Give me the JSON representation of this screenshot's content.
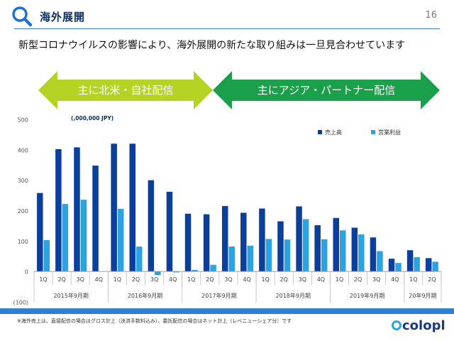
{
  "header": {
    "title": "海外展開",
    "page_number": "16",
    "icon": "search-icon"
  },
  "subtitle": "新型コロナウイルスの影響により、海外展開の新たな取り組みは一旦見合わせています",
  "arrows": {
    "left": {
      "label": "主に北米・自社配信",
      "color": "#b5d324"
    },
    "right": {
      "label": "主にアジア・パートナー配信",
      "color": "#1aa04a"
    }
  },
  "footer": {
    "note": "※海外売上は、直接配信の場合はグロス計上（決済手数料込み）、委託配信の場合はネット計上（レベニューシェア分）です",
    "logo": "colopl"
  },
  "colors": {
    "band": "#2f7ed8"
  },
  "chart_data": {
    "type": "bar",
    "unit_label": "(,000,000 JPY)",
    "ylim": [
      -100,
      500
    ],
    "yticks": [
      "500",
      "400",
      "300",
      "200",
      "100",
      "0",
      "(100)"
    ],
    "ytick_values": [
      500,
      400,
      300,
      200,
      100,
      0,
      -100
    ],
    "categories": [
      "1Q",
      "2Q",
      "3Q",
      "4Q",
      "1Q",
      "2Q",
      "3Q",
      "4Q",
      "1Q",
      "2Q",
      "3Q",
      "4Q",
      "1Q",
      "2Q",
      "3Q",
      "4Q",
      "1Q",
      "2Q",
      "3Q",
      "4Q",
      "1Q",
      "2Q"
    ],
    "groups": [
      {
        "label": "2015年9月期",
        "count": 4
      },
      {
        "label": "2016年9月期",
        "count": 4
      },
      {
        "label": "2017年9月期",
        "count": 4
      },
      {
        "label": "2018年9月期",
        "count": 4
      },
      {
        "label": "2019年9月期",
        "count": 4
      },
      {
        "label": "20年9月期",
        "count": 2
      }
    ],
    "series": [
      {
        "name": "売上高",
        "color": "#0b3f9a",
        "values": [
          258,
          402,
          408,
          348,
          420,
          420,
          300,
          262,
          190,
          188,
          215,
          193,
          207,
          165,
          214,
          152,
          176,
          144,
          112,
          42,
          70,
          44
        ]
      },
      {
        "name": "営業利益",
        "color": "#2ba3e3",
        "values": [
          103,
          222,
          236,
          0,
          206,
          82,
          -12,
          -3,
          5,
          22,
          82,
          85,
          107,
          105,
          172,
          106,
          135,
          122,
          67,
          28,
          47,
          32
        ]
      }
    ],
    "legend_position": "top-right",
    "grid": false
  }
}
